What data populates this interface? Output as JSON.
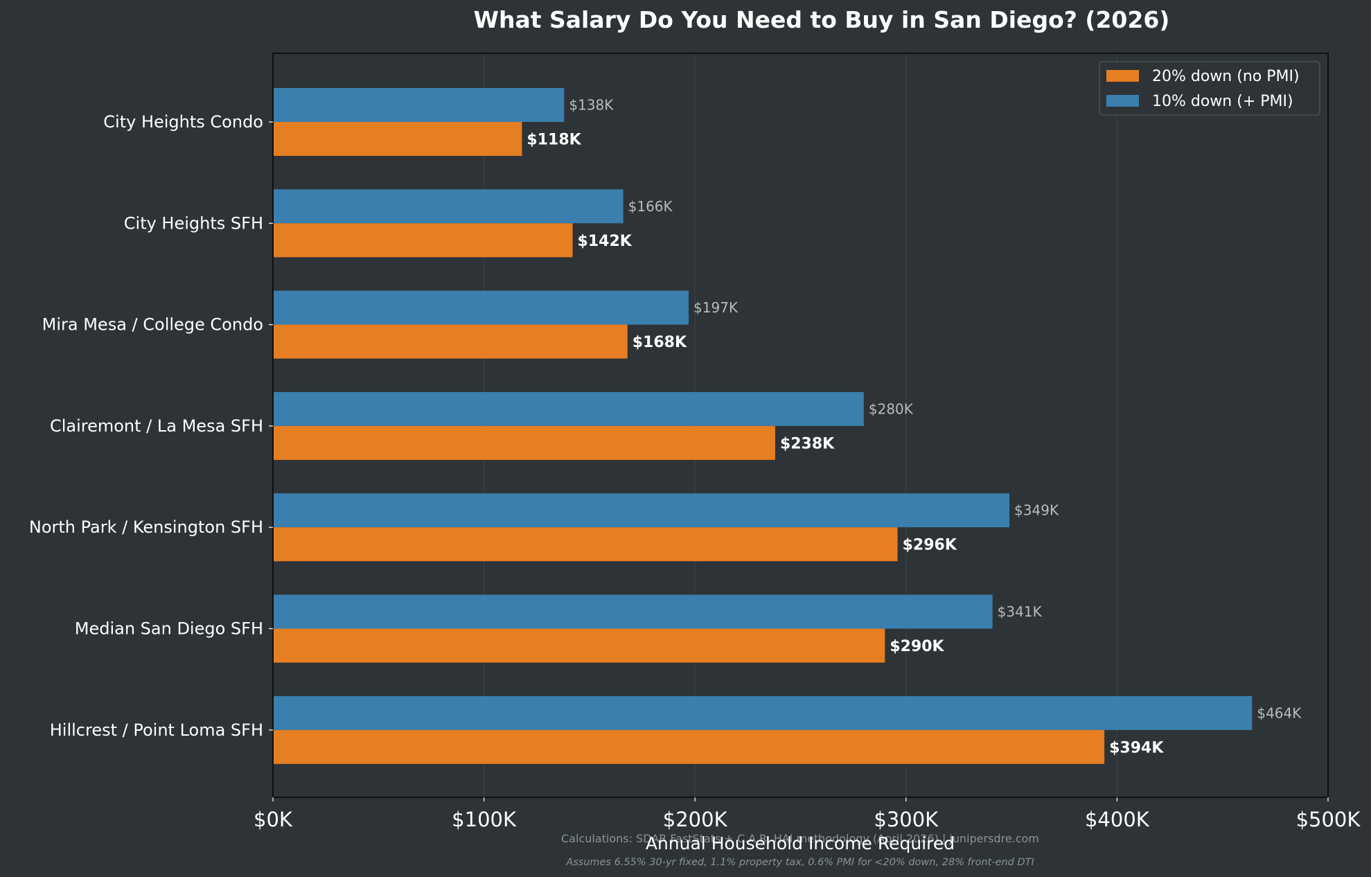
{
  "chart_data": {
    "type": "bar",
    "orientation": "horizontal",
    "title": "What Salary Do You Need to Buy in San Diego? (2026)",
    "xlabel": "Annual Household Income Required",
    "ylabel": "",
    "xlim": [
      0,
      500000
    ],
    "xticks": [
      0,
      100000,
      200000,
      300000,
      400000,
      500000
    ],
    "xtick_labels": [
      "$0K",
      "$100K",
      "$200K",
      "$300K",
      "$400K",
      "$500K"
    ],
    "grid": "vertical",
    "legend_position": "top-right",
    "categories": [
      "City Heights Condo",
      "City Heights SFH",
      "Mira Mesa / College Condo",
      "Clairemont / La Mesa SFH",
      "North Park / Kensington SFH",
      "Median San Diego SFH",
      "Hillcrest / Point Loma SFH"
    ],
    "series": [
      {
        "name": "20% down (no PMI)",
        "color": "#e67e22",
        "values": [
          118000,
          142000,
          168000,
          238000,
          296000,
          290000,
          394000
        ],
        "labels": [
          "$118K",
          "$142K",
          "$168K",
          "$238K",
          "$296K",
          "$290K",
          "$394K"
        ]
      },
      {
        "name": "10% down (+ PMI)",
        "color": "#3a7fad",
        "values": [
          138000,
          166000,
          197000,
          280000,
          349000,
          341000,
          464000
        ],
        "labels": [
          "$138K",
          "$166K",
          "$197K",
          "$280K",
          "$349K",
          "$341K",
          "$464K"
        ]
      }
    ],
    "footnotes": [
      "Calculations: SDAR FastStats + C.A.R. HAI methodology (April 2026)  |  junipersdre.com",
      "Assumes 6.55% 30-yr fixed, 1.1% property tax, 0.6% PMI for <20% down, 28% front-end DTI"
    ]
  },
  "colors": {
    "background": "#2d3336",
    "text": "#ffffff",
    "muted_text": "#8c9396",
    "secondary_label": "#b8bcbe"
  }
}
